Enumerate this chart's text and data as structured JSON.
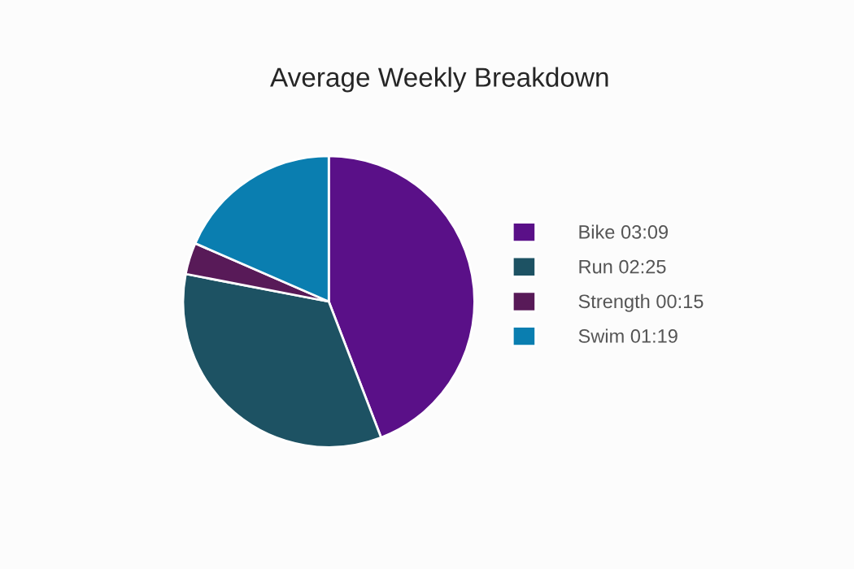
{
  "chart_data": {
    "type": "pie",
    "title": "Average Weekly Breakdown",
    "categories": [
      "Bike 03:09",
      "Run 02:25",
      "Strength 00:15",
      "Swim 01:19"
    ],
    "values": [
      189,
      145,
      15,
      79
    ],
    "colors": [
      "#5a1088",
      "#1d5263",
      "#581a58",
      "#0a7eb0"
    ],
    "legend": "right"
  }
}
